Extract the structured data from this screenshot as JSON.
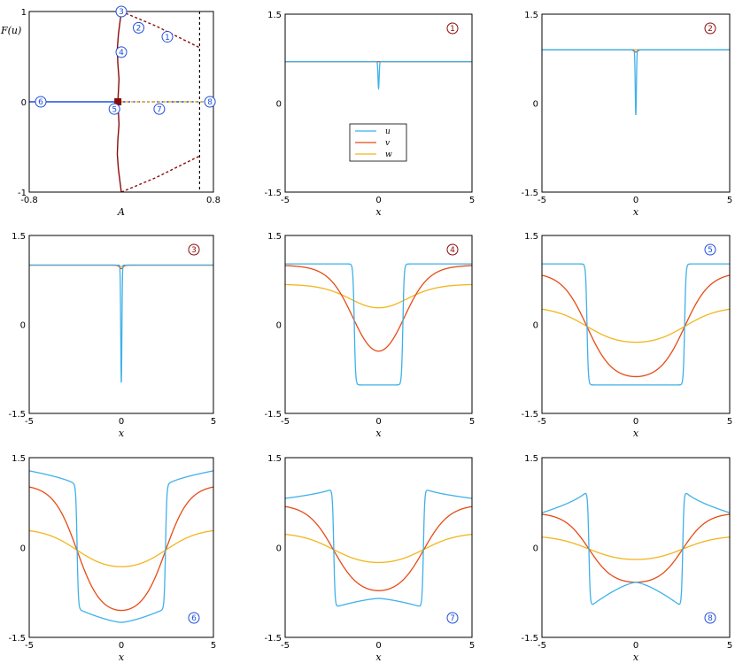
{
  "colors": {
    "u": "#3fb1e9",
    "v": "#e64a14",
    "w": "#f2b51b",
    "branch": "#8b0a0a",
    "flat": "#1f4ed8",
    "badge_red": "#8b0a0a",
    "badge_blue": "#1f4ed8"
  },
  "chart_data": [
    {
      "type": "line",
      "id": "bifurcation",
      "xlabel": "A",
      "ylabel": "F(u)",
      "xlim": [
        -0.8,
        0.8
      ],
      "ylim": [
        -1,
        1
      ],
      "xtick_labels": [
        "-0.8",
        "0.8"
      ],
      "ytick_labels": [
        "-1",
        "0",
        "1"
      ],
      "fold_line_x": 0.68,
      "series": [
        {
          "name": "upper branch (solid)",
          "color": "branch",
          "style": "solid",
          "points": [
            [
              0.0,
              1.0
            ],
            [
              -0.01,
              0.9
            ],
            [
              -0.025,
              0.75
            ],
            [
              -0.035,
              0.58
            ],
            [
              -0.03,
              0.42
            ],
            [
              -0.02,
              0.25
            ],
            [
              -0.03,
              0.0
            ]
          ]
        },
        {
          "name": "lower branch (solid)",
          "color": "branch",
          "style": "solid",
          "points": [
            [
              -0.03,
              0.0
            ],
            [
              -0.02,
              -0.25
            ],
            [
              -0.03,
              -0.42
            ],
            [
              -0.035,
              -0.58
            ],
            [
              -0.025,
              -0.75
            ],
            [
              -0.01,
              -0.9
            ],
            [
              0.0,
              -1.0
            ]
          ]
        },
        {
          "name": "upper branch (dashed)",
          "color": "branch",
          "style": "dashed",
          "points": [
            [
              0.0,
              1.0
            ],
            [
              0.3,
              0.84
            ],
            [
              0.68,
              0.6
            ]
          ]
        },
        {
          "name": "lower branch (dashed)",
          "color": "branch",
          "style": "dashed",
          "points": [
            [
              0.0,
              -1.0
            ],
            [
              0.3,
              -0.84
            ],
            [
              0.68,
              -0.6
            ]
          ]
        },
        {
          "name": "flat branch (solid)",
          "color": "flat",
          "style": "solid",
          "points": [
            [
              -0.8,
              0.0
            ],
            [
              -0.03,
              0.0
            ]
          ]
        },
        {
          "name": "flat branch (dashed)",
          "color": "flat",
          "style": "dashed",
          "points": [
            [
              -0.03,
              0.0
            ],
            [
              0.8,
              0.0
            ]
          ]
        }
      ],
      "marker": {
        "x": -0.03,
        "y": 0.0,
        "shape": "square"
      },
      "labels": [
        {
          "text": "1",
          "x": 0.4,
          "y": 0.72,
          "color": "badge_blue"
        },
        {
          "text": "2",
          "x": 0.15,
          "y": 0.82,
          "color": "badge_blue"
        },
        {
          "text": "3",
          "x": 0.0,
          "y": 1.0,
          "color": "badge_blue"
        },
        {
          "text": "4",
          "x": 0.0,
          "y": 0.55,
          "color": "badge_blue"
        },
        {
          "text": "5",
          "x": -0.06,
          "y": -0.08,
          "color": "badge_blue"
        },
        {
          "text": "6",
          "x": -0.7,
          "y": 0.0,
          "color": "badge_blue"
        },
        {
          "text": "7",
          "x": 0.33,
          "y": -0.08,
          "color": "badge_blue"
        },
        {
          "text": "8",
          "x": 0.77,
          "y": 0.0,
          "color": "badge_blue"
        }
      ]
    },
    {
      "type": "line",
      "id": "profile-1",
      "label": "1",
      "label_color": "badge_red",
      "kind": "spike",
      "base": {
        "u": 0.7,
        "v": 0.7,
        "w": 0.7
      },
      "u_min": 0.25,
      "v_dip": 0.0,
      "w_dip": 0.0,
      "xlabel": "x",
      "xlim": [
        -5,
        5
      ],
      "ylim": [
        -1.5,
        1.5
      ],
      "xtick_labels": [
        "-5",
        "0",
        "5"
      ],
      "ytick_labels": [
        "-1.5",
        "0",
        "1.5"
      ],
      "legend": {
        "position": "center-left",
        "entries": [
          "u",
          "v",
          "w"
        ]
      }
    },
    {
      "type": "line",
      "id": "profile-2",
      "label": "2",
      "label_color": "badge_red",
      "kind": "spike",
      "base": {
        "u": 0.9,
        "v": 0.9,
        "w": 0.9
      },
      "u_min": -0.2,
      "v_dip": 0.04,
      "w_dip": 0.0,
      "xlabel": "x",
      "xlim": [
        -5,
        5
      ],
      "ylim": [
        -1.5,
        1.5
      ],
      "xtick_labels": [
        "-5",
        "0",
        "5"
      ],
      "ytick_labels": [
        "-1.5",
        "0",
        "1.5"
      ]
    },
    {
      "type": "line",
      "id": "profile-3",
      "label": "3",
      "label_color": "badge_red",
      "kind": "spike",
      "base": {
        "u": 1.0,
        "v": 1.0,
        "w": 1.0
      },
      "u_min": -0.98,
      "v_dip": 0.06,
      "w_dip": 0.02,
      "xlabel": "x",
      "xlim": [
        -5,
        5
      ],
      "ylim": [
        -1.5,
        1.5
      ],
      "xtick_labels": [
        "-5",
        "0",
        "5"
      ],
      "ytick_labels": [
        "-1.5",
        "0",
        "1.5"
      ]
    },
    {
      "type": "line",
      "id": "profile-4",
      "label": "4",
      "label_color": "badge_red",
      "kind": "well",
      "x0": 1.3,
      "u_out": [
        1.02,
        1.02
      ],
      "u_in": [
        -1.02,
        -1.02
      ],
      "v_out": 1.0,
      "v_min": -0.45,
      "v_width": 1.35,
      "w_out": 0.68,
      "w_min": 0.28,
      "w_width": 1.7,
      "xlabel": "x",
      "xlim": [
        -5,
        5
      ],
      "ylim": [
        -1.5,
        1.5
      ],
      "xtick_labels": [
        "-5",
        "0",
        "5"
      ],
      "ytick_labels": [
        "-1.5",
        "0",
        "1.5"
      ]
    },
    {
      "type": "line",
      "id": "profile-5",
      "label": "5",
      "label_color": "badge_blue",
      "kind": "well",
      "x0": 2.6,
      "u_out": [
        1.02,
        1.02
      ],
      "u_in": [
        -1.02,
        -1.02
      ],
      "v_out": 0.88,
      "v_min": -0.88,
      "v_width": 1.35,
      "w_out": 0.3,
      "w_min": -0.3,
      "w_width": 1.8,
      "xlabel": "x",
      "xlim": [
        -5,
        5
      ],
      "ylim": [
        -1.5,
        1.5
      ],
      "xtick_labels": [
        "-5",
        "0",
        "5"
      ],
      "ytick_labels": [
        "-1.5",
        "0",
        "1.5"
      ]
    },
    {
      "type": "line",
      "id": "profile-6",
      "label": "6",
      "label_color": "badge_blue",
      "kind": "well",
      "x0": 2.4,
      "u_out": [
        1.28,
        1.02
      ],
      "u_in": [
        -1.02,
        -1.25
      ],
      "v_out": 1.05,
      "v_min": -1.05,
      "v_width": 1.3,
      "w_out": 0.32,
      "w_min": -0.32,
      "w_width": 1.8,
      "xlabel": "x",
      "xlim": [
        -5,
        5
      ],
      "ylim": [
        -1.5,
        1.5
      ],
      "xtick_labels": [
        "-5",
        "0",
        "5"
      ],
      "ytick_labels": [
        "-1.5",
        "0",
        "1.5"
      ]
    },
    {
      "type": "line",
      "id": "profile-7",
      "label": "7",
      "label_color": "badge_blue",
      "kind": "well",
      "x0": 2.4,
      "u_out": [
        0.82,
        1.0
      ],
      "u_in": [
        -1.0,
        -0.85
      ],
      "v_out": 0.72,
      "v_min": -0.72,
      "v_width": 1.4,
      "w_out": 0.25,
      "w_min": -0.25,
      "w_width": 1.8,
      "xlabel": "x",
      "xlim": [
        -5,
        5
      ],
      "ylim": [
        -1.5,
        1.5
      ],
      "xtick_labels": [
        "-5",
        "0",
        "5"
      ],
      "ytick_labels": [
        "-1.5",
        "0",
        "1.5"
      ]
    },
    {
      "type": "line",
      "id": "profile-8",
      "label": "8",
      "label_color": "badge_blue",
      "kind": "well",
      "x0": 2.5,
      "u_out": [
        0.58,
        1.0
      ],
      "u_in": [
        -1.0,
        -0.58
      ],
      "v_out": 0.58,
      "v_min": -0.58,
      "v_width": 1.3,
      "w_out": 0.2,
      "w_min": -0.2,
      "w_width": 1.8,
      "xlabel": "x",
      "xlim": [
        -5,
        5
      ],
      "ylim": [
        -1.5,
        1.5
      ],
      "xtick_labels": [
        "-5",
        "0",
        "5"
      ],
      "ytick_labels": [
        "-1.5",
        "0",
        "1.5"
      ]
    }
  ]
}
